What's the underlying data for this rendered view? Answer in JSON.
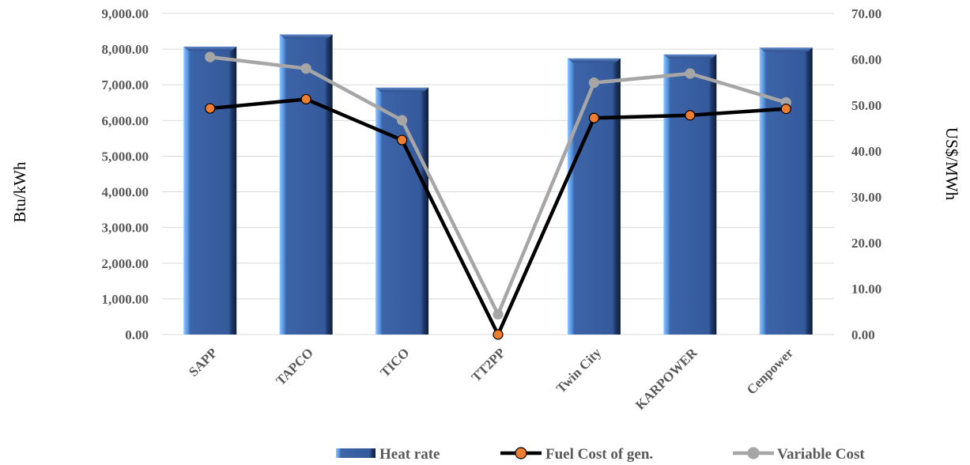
{
  "chart_data": {
    "type": "bar",
    "categories": [
      "SAPP",
      "TAPCO",
      "TICO",
      "TT2PP",
      "Twin City",
      "KARPOWER",
      "Cenpower"
    ],
    "series": [
      {
        "name": "Heat rate",
        "type": "bar",
        "axis": "left",
        "values": [
          8070,
          8410,
          6920,
          0,
          7740,
          7850,
          8040
        ],
        "color": "#3d64a8"
      },
      {
        "name": "Fuel Cost of gen.",
        "type": "line",
        "axis": "right",
        "values": [
          49.3,
          51.3,
          42.4,
          0,
          47.2,
          47.8,
          49.2
        ],
        "color": "#000000",
        "marker_color": "#ed7d31"
      },
      {
        "name": "Variable Cost",
        "type": "line",
        "axis": "right",
        "values": [
          60.5,
          58.0,
          46.7,
          4.4,
          54.9,
          56.9,
          50.6
        ],
        "color": "#a6a6a6",
        "marker_color": "#a6a6a6"
      }
    ],
    "ylabel": "Btu/kWh",
    "y2label": "US$/MWh",
    "ylim": [
      0,
      9000
    ],
    "y2lim": [
      0,
      70
    ],
    "yticks": [
      "0.00",
      "1,000.00",
      "2,000.00",
      "3,000.00",
      "4,000.00",
      "5,000.00",
      "6,000.00",
      "7,000.00",
      "8,000.00",
      "9,000.00"
    ],
    "y2ticks": [
      "0.00",
      "10.00",
      "20.00",
      "30.00",
      "40.00",
      "50.00",
      "60.00",
      "70.00"
    ],
    "grid": true,
    "legend": "bottom"
  }
}
